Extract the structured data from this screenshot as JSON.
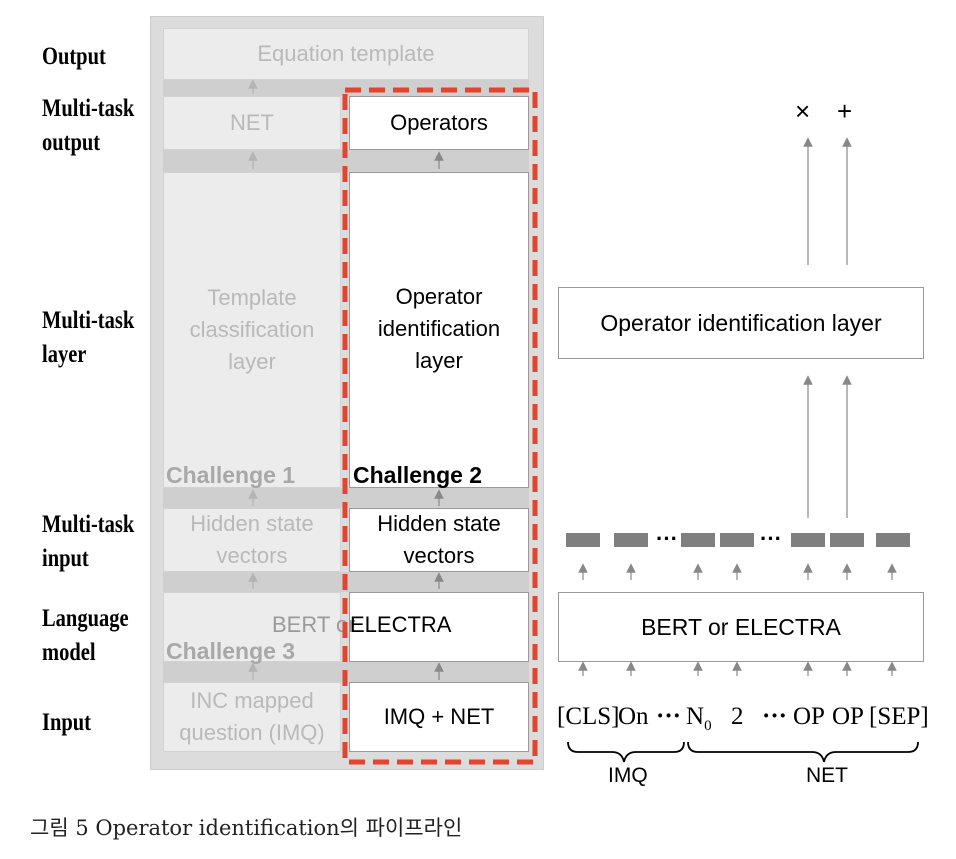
{
  "row_labels": {
    "output": "Output",
    "multitask_output": [
      "Multi-task",
      "output"
    ],
    "multitask_layer": [
      "Multi-task",
      "layer"
    ],
    "multitask_input": [
      "Multi-task",
      "input"
    ],
    "language_model": [
      "Language",
      "model"
    ],
    "input": "Input"
  },
  "left_panel": {
    "equation_template": "Equation template",
    "net": "NET",
    "template_layer": [
      "Template",
      "classification",
      "layer"
    ],
    "challenge1": "Challenge 1",
    "hidden_gray": [
      "Hidden state",
      "vectors"
    ],
    "bert_left": "BERT or",
    "challenge3": "Challenge 3",
    "imq_gray": [
      "INC mapped",
      "question (IMQ)"
    ],
    "operators": "Operators",
    "operator_layer": [
      "Operator",
      "identification",
      "layer"
    ],
    "challenge2": "Challenge 2",
    "hidden_white": [
      "Hidden state",
      "vectors"
    ],
    "electra_right": "ELECTRA",
    "imq_net": "IMQ + NET",
    "highlight_color": "#e0452f"
  },
  "right_panel": {
    "ops": [
      "×",
      "+"
    ],
    "operator_layer": "Operator identification layer",
    "bert": "BERT or ELECTRA",
    "tokens": [
      "[CLS]",
      "On",
      "···",
      "N",
      "2",
      "···",
      "OP",
      "OP",
      "[SEP]"
    ],
    "n_subscript": "0",
    "vec_ellipsis": [
      "···",
      "···"
    ],
    "imq_label": "IMQ",
    "net_label": "NET"
  },
  "caption": "그림 5 Operator identification의 파이프라인"
}
